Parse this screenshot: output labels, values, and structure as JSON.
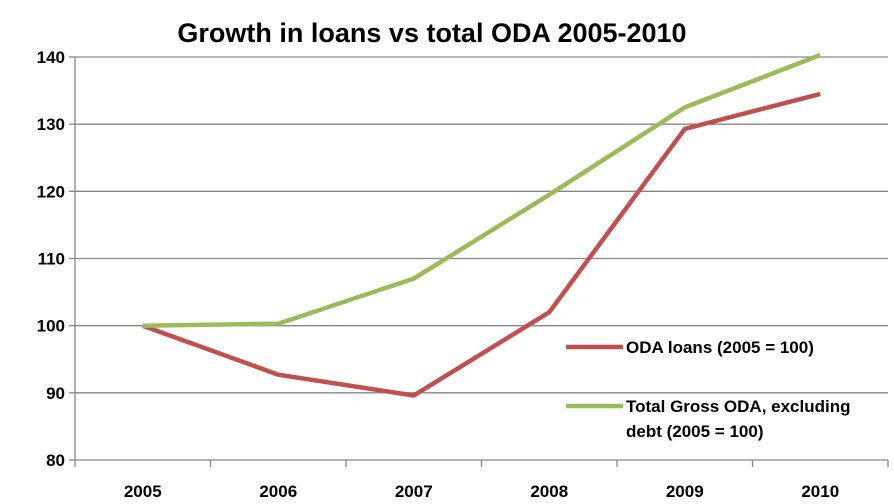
{
  "chart_data": {
    "type": "line",
    "title": "Growth in loans vs total ODA 2005-2010",
    "xlabel": "",
    "ylabel": "",
    "categories": [
      "2005",
      "2006",
      "2007",
      "2008",
      "2009",
      "2010"
    ],
    "ylim": [
      80,
      140
    ],
    "yticks": [
      80,
      90,
      100,
      110,
      120,
      130,
      140
    ],
    "grid": true,
    "legend_position": "right",
    "series": [
      {
        "name": "ODA loans (2005 = 100)",
        "values": [
          100,
          92.7,
          89.6,
          102,
          129.3,
          134.5
        ],
        "color": "#c0504d"
      },
      {
        "name": "Total Gross ODA, excluding debt (2005 = 100)",
        "legend_lines": [
          "Total Gross ODA, excluding",
          "debt (2005 = 100)"
        ],
        "values": [
          100,
          100.3,
          107,
          119.5,
          132.5,
          140.3
        ],
        "color": "#9bbb59"
      }
    ]
  }
}
